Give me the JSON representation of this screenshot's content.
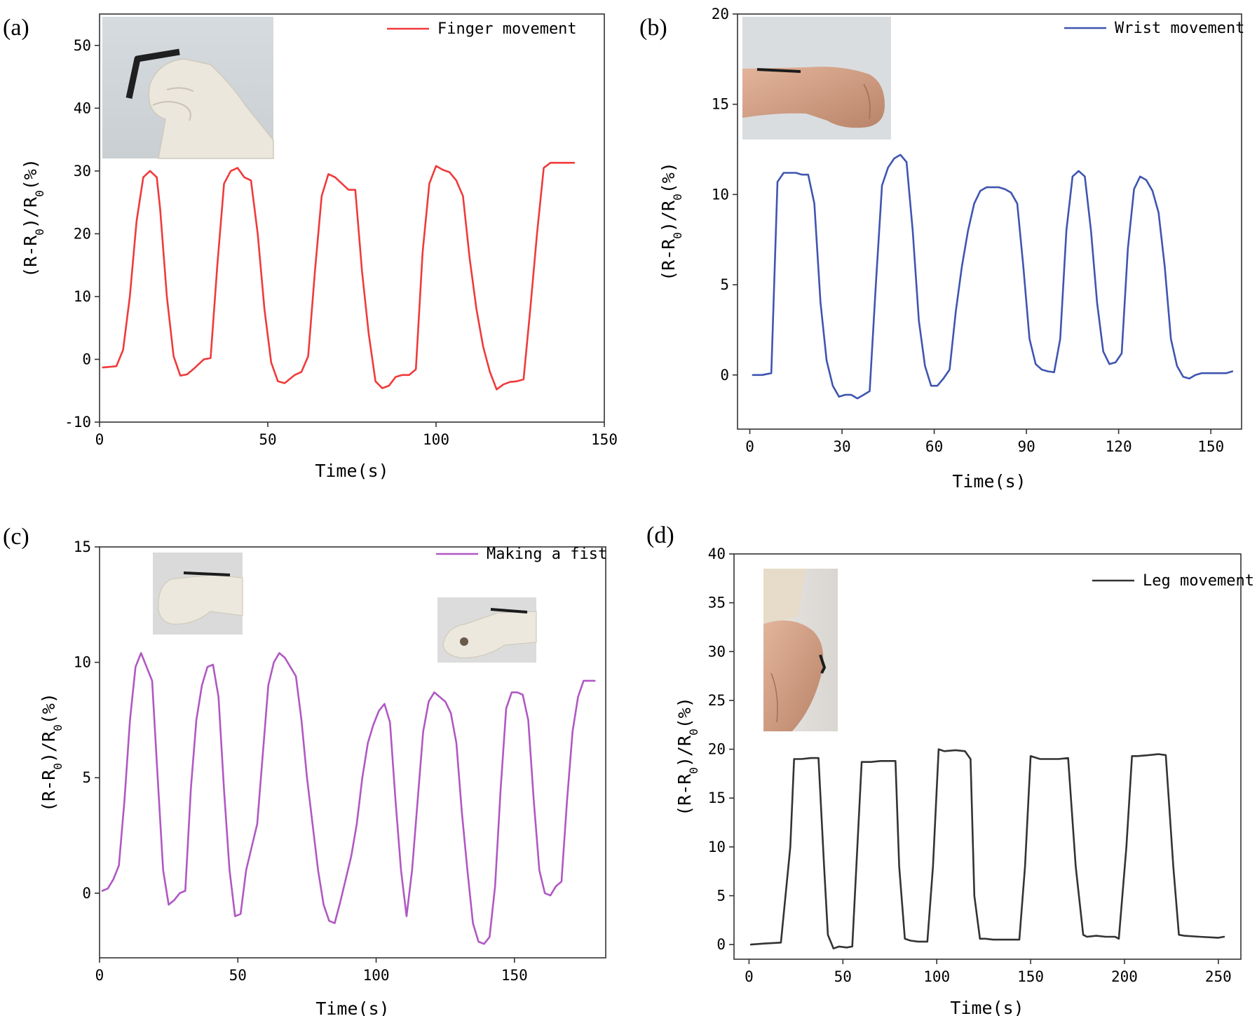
{
  "chart_data": [
    {
      "panel": "(a)",
      "type": "line",
      "xlabel": "Time(s)",
      "ylabel": "(R-R0)/R0(%)",
      "xlim": [
        0,
        150
      ],
      "ylim": [
        -10,
        55
      ],
      "xticks": [
        0,
        50,
        100,
        150
      ],
      "yticks": [
        -10,
        0,
        10,
        20,
        30,
        40,
        50
      ],
      "legend_position": "top-right",
      "inset_photos": [
        "bent-finger-glove-photo"
      ],
      "series": [
        {
          "name": "Finger movement",
          "color": "#f03a3a",
          "x": [
            1,
            5,
            7,
            9,
            11,
            13,
            15,
            17,
            18,
            20,
            22,
            24,
            26,
            28,
            31,
            33,
            35,
            37,
            39,
            41,
            43,
            45,
            47,
            49,
            51,
            53,
            55,
            58,
            60,
            62,
            64,
            66,
            68,
            70,
            72,
            74,
            76,
            78,
            80,
            82,
            84,
            86,
            88,
            90,
            92,
            94,
            96,
            98,
            100,
            102,
            104,
            106,
            108,
            110,
            112,
            114,
            116,
            118,
            120,
            122,
            124,
            126,
            128,
            130,
            132,
            134,
            136,
            138,
            140,
            141
          ],
          "values": [
            -1.3,
            -1.1,
            1.5,
            10,
            22,
            29,
            30,
            29,
            24,
            10,
            0.5,
            -2.6,
            -2.4,
            -1.5,
            0,
            0.2,
            15,
            28,
            30,
            30.5,
            29,
            28.5,
            20,
            8,
            -0.5,
            -3.5,
            -3.8,
            -2.5,
            -2,
            0.5,
            14,
            26,
            29.5,
            29,
            28,
            27,
            27,
            14,
            4,
            -3.5,
            -4.6,
            -4.2,
            -2.8,
            -2.5,
            -2.5,
            -1.6,
            17,
            28,
            30.8,
            30.2,
            29.8,
            28.5,
            26,
            16,
            8,
            2,
            -2,
            -4.8,
            -4,
            -3.6,
            -3.5,
            -3.2,
            8,
            20,
            30.5,
            31.3,
            31.3,
            31.3,
            31.3,
            31.3
          ]
        }
      ]
    },
    {
      "panel": "(b)",
      "type": "line",
      "xlabel": "Time(s)",
      "ylabel": "(R-R0)/R0(%)",
      "xlim": [
        -4,
        160
      ],
      "ylim": [
        -3,
        20
      ],
      "xticks": [
        0,
        30,
        60,
        90,
        120,
        150
      ],
      "yticks": [
        0,
        5,
        10,
        15,
        20
      ],
      "legend_position": "top-right",
      "inset_photos": [
        "wrist-fist-photo"
      ],
      "series": [
        {
          "name": "Wrist movement",
          "color": "#3f55b0",
          "x": [
            1,
            4,
            7,
            9,
            11,
            13,
            15,
            17,
            19,
            21,
            23,
            25,
            27,
            29,
            31,
            33,
            35,
            37,
            39,
            41,
            43,
            45,
            47,
            49,
            51,
            53,
            55,
            57,
            59,
            61,
            63,
            65,
            67,
            69,
            71,
            73,
            75,
            77,
            79,
            81,
            83,
            85,
            87,
            89,
            91,
            93,
            95,
            97,
            99,
            101,
            103,
            105,
            107,
            109,
            111,
            113,
            115,
            117,
            119,
            121,
            123,
            125,
            127,
            129,
            131,
            133,
            135,
            137,
            139,
            141,
            143,
            145,
            147,
            149,
            151,
            153,
            155,
            157
          ],
          "values": [
            0,
            0,
            0.1,
            10.7,
            11.2,
            11.2,
            11.2,
            11.1,
            11.1,
            9.5,
            4,
            0.8,
            -0.6,
            -1.2,
            -1.1,
            -1.1,
            -1.3,
            -1.1,
            -0.9,
            5,
            10.5,
            11.5,
            12,
            12.2,
            11.8,
            8,
            3,
            0.5,
            -0.6,
            -0.6,
            -0.2,
            0.3,
            3.5,
            6,
            8,
            9.5,
            10.2,
            10.4,
            10.4,
            10.4,
            10.3,
            10.1,
            9.5,
            6,
            2,
            0.6,
            0.3,
            0.2,
            0.15,
            2,
            8,
            11,
            11.3,
            11,
            8,
            4,
            1.3,
            0.6,
            0.7,
            1.2,
            7,
            10.3,
            11,
            10.8,
            10.2,
            9,
            6,
            2,
            0.5,
            -0.1,
            -0.2,
            0,
            0.1,
            0.1,
            0.1,
            0.1,
            0.1,
            0.2
          ]
        }
      ]
    },
    {
      "panel": "(c)",
      "type": "line",
      "xlabel": "Time(s)",
      "ylabel": "(R-R0)/R0(%)",
      "xlim": [
        0,
        183
      ],
      "ylim": [
        -2.8,
        15
      ],
      "xticks": [
        0,
        50,
        100,
        150
      ],
      "yticks": [
        0,
        5,
        10,
        15
      ],
      "legend_position": "top-right",
      "inset_photos": [
        "fist-glove-photo",
        "open-hand-glove-photo"
      ],
      "series": [
        {
          "name": "Making a fist",
          "color": "#b058c3",
          "x": [
            1,
            3,
            5,
            7,
            9,
            11,
            13,
            15,
            17,
            19,
            21,
            23,
            25,
            27,
            29,
            31,
            33,
            35,
            37,
            39,
            41,
            43,
            45,
            47,
            49,
            51,
            53,
            55,
            57,
            59,
            61,
            63,
            65,
            67,
            69,
            71,
            73,
            75,
            77,
            79,
            81,
            83,
            85,
            87,
            89,
            91,
            93,
            95,
            97,
            99,
            101,
            103,
            105,
            107,
            109,
            111,
            113,
            115,
            117,
            119,
            121,
            123,
            125,
            127,
            129,
            131,
            133,
            135,
            137,
            139,
            141,
            143,
            145,
            147,
            149,
            151,
            153,
            155,
            157,
            159,
            161,
            163,
            165,
            167,
            169,
            171,
            173,
            175,
            177,
            179
          ],
          "values": [
            0.1,
            0.2,
            0.6,
            1.2,
            4,
            7.5,
            9.8,
            10.4,
            9.8,
            9.2,
            5,
            1,
            -0.5,
            -0.3,
            0,
            0.1,
            4.5,
            7.5,
            9,
            9.8,
            9.9,
            8.5,
            4.5,
            1,
            -1,
            -0.9,
            1,
            2,
            3,
            6,
            9,
            10,
            10.4,
            10.2,
            9.8,
            9.4,
            7.5,
            5,
            3,
            1,
            -0.5,
            -1.2,
            -1.3,
            -0.4,
            0.6,
            1.6,
            3,
            5,
            6.5,
            7.3,
            7.9,
            8.2,
            7.4,
            4,
            1,
            -1,
            1,
            4,
            7,
            8.3,
            8.7,
            8.5,
            8.3,
            7.8,
            6.5,
            3.5,
            1,
            -1.3,
            -2.1,
            -2.2,
            -1.9,
            0.3,
            4.5,
            8,
            8.7,
            8.7,
            8.6,
            7.5,
            4,
            1,
            0,
            -0.1,
            0.3,
            0.5,
            4,
            7,
            8.5,
            9.2,
            9.2,
            9.2
          ]
        }
      ]
    },
    {
      "panel": "(d)",
      "type": "line",
      "xlabel": "Time(s)",
      "ylabel": "(R-R0)/R0(%)",
      "xlim": [
        -8,
        262
      ],
      "ylim": [
        -1.5,
        40
      ],
      "xticks": [
        0,
        50,
        100,
        150,
        200,
        250
      ],
      "yticks": [
        0,
        5,
        10,
        15,
        20,
        25,
        30,
        35,
        40
      ],
      "legend_position": "top-right",
      "inset_photos": [
        "bent-knee-photo"
      ],
      "series": [
        {
          "name": "Leg movement",
          "color": "#333333",
          "x": [
            1,
            8,
            17,
            22,
            24,
            28,
            33,
            37,
            40,
            42,
            45,
            48,
            52,
            55,
            60,
            65,
            70,
            75,
            78,
            80,
            83,
            86,
            90,
            95,
            98,
            101,
            104,
            110,
            115,
            118,
            120,
            123,
            126,
            130,
            140,
            144,
            147,
            150,
            155,
            160,
            165,
            170,
            174,
            178,
            180,
            185,
            190,
            195,
            197,
            201,
            204,
            207,
            213,
            218,
            222,
            226,
            229,
            232,
            240,
            250,
            253
          ],
          "values": [
            0,
            0.1,
            0.2,
            10,
            19,
            19,
            19.1,
            19.1,
            8,
            1,
            -0.4,
            -0.2,
            -0.3,
            -0.2,
            18.7,
            18.7,
            18.8,
            18.8,
            18.8,
            8,
            0.6,
            0.4,
            0.3,
            0.3,
            8,
            20,
            19.8,
            19.9,
            19.8,
            19,
            5,
            0.6,
            0.6,
            0.5,
            0.5,
            0.5,
            8,
            19.3,
            19,
            19,
            19,
            19.1,
            8,
            1,
            0.8,
            0.9,
            0.8,
            0.8,
            0.6,
            10,
            19.3,
            19.3,
            19.4,
            19.5,
            19.4,
            8,
            1,
            0.9,
            0.8,
            0.7,
            0.8
          ]
        }
      ]
    }
  ]
}
